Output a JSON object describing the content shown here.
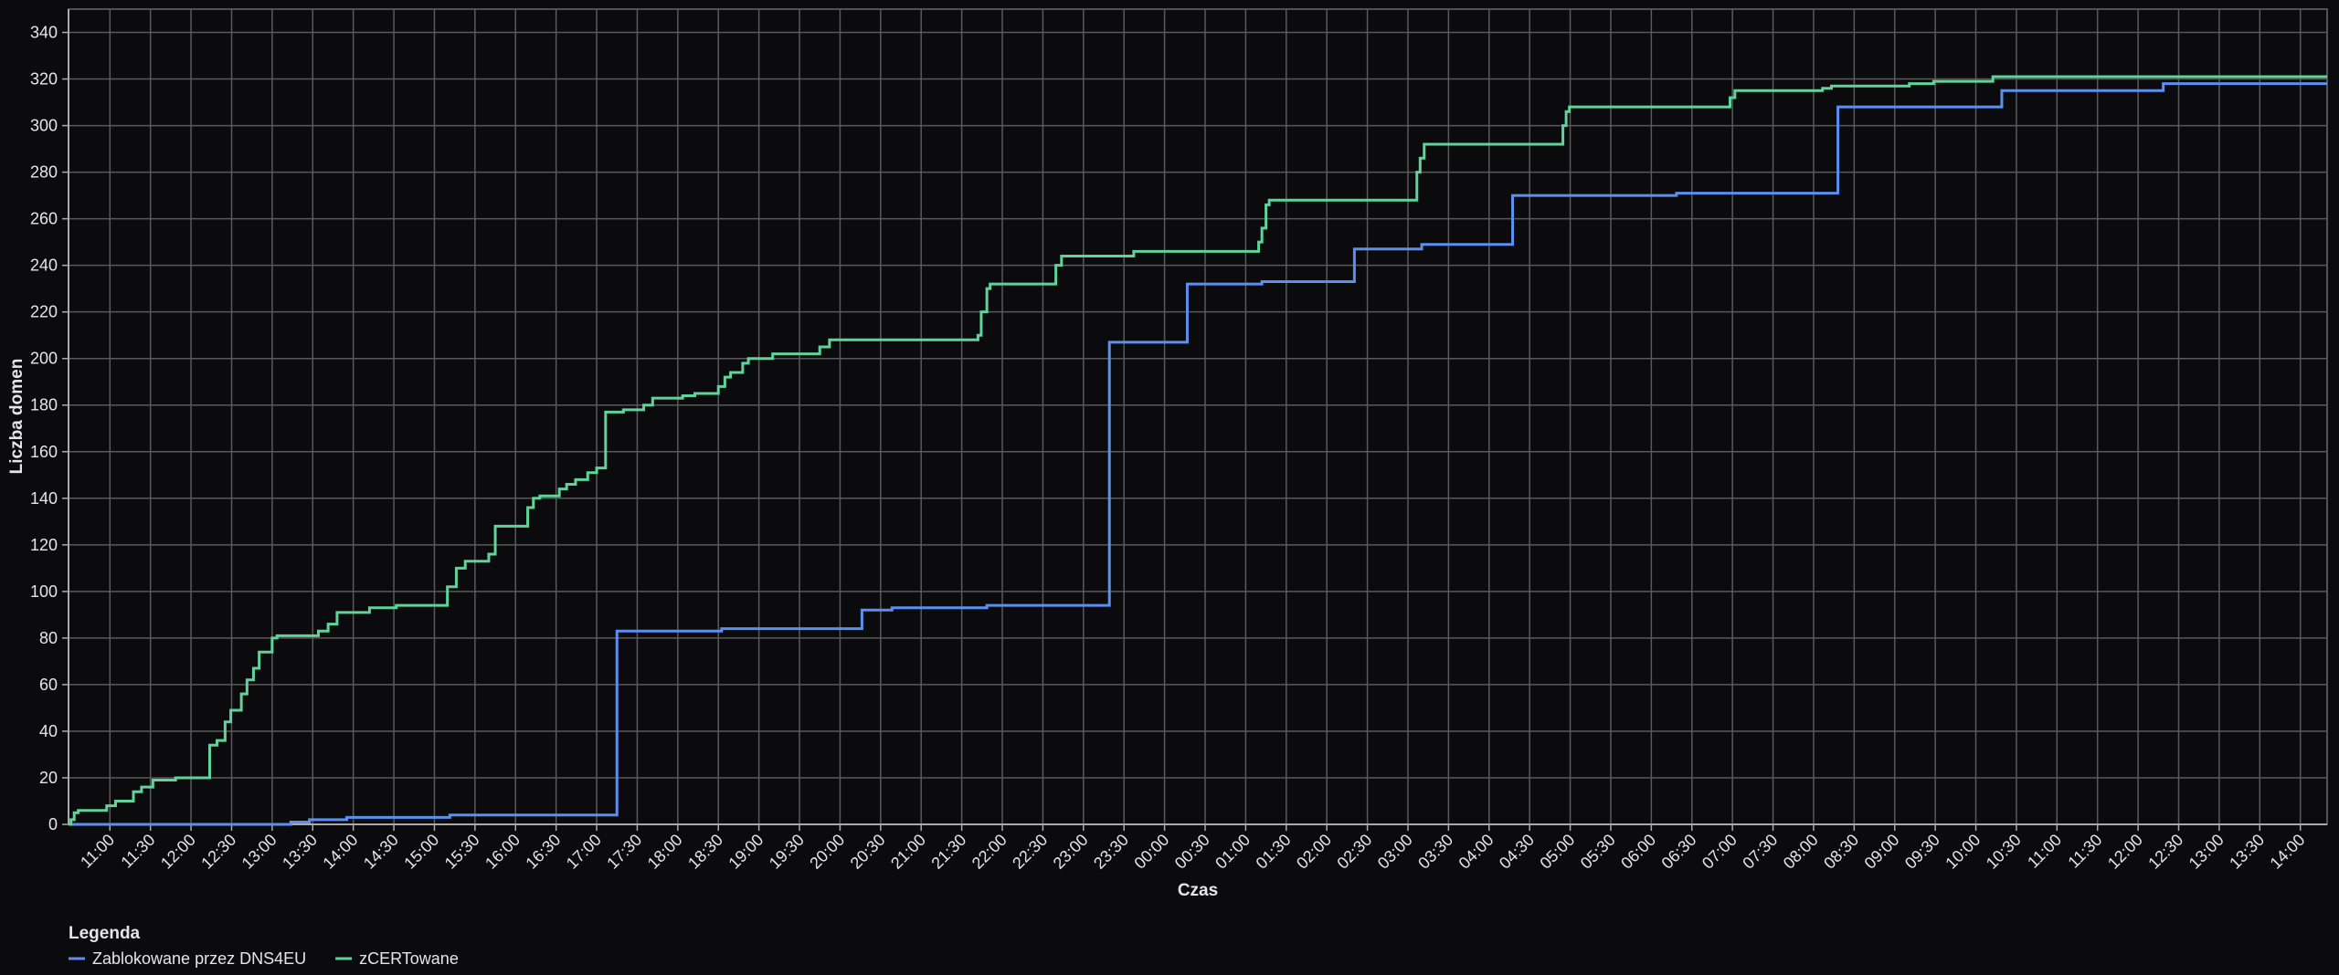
{
  "chart_data": {
    "type": "step-line",
    "x_label": "Czas",
    "y_label": "Liczba domen",
    "legend_title": "Legenda",
    "legend": "bottom-left",
    "grid": true,
    "xlim": [
      10.49,
      38.33
    ],
    "ylim": [
      0,
      350
    ],
    "yticks": [
      0,
      20,
      40,
      60,
      80,
      100,
      120,
      140,
      160,
      180,
      200,
      220,
      240,
      260,
      280,
      300,
      320,
      340
    ],
    "xticks": [
      {
        "value": 11,
        "label": "11:00"
      },
      {
        "value": 11.5,
        "label": "11:30"
      },
      {
        "value": 12,
        "label": "12:00"
      },
      {
        "value": 12.5,
        "label": "12:30"
      },
      {
        "value": 13,
        "label": "13:00"
      },
      {
        "value": 13.5,
        "label": "13:30"
      },
      {
        "value": 14,
        "label": "14:00"
      },
      {
        "value": 14.5,
        "label": "14:30"
      },
      {
        "value": 15,
        "label": "15:00"
      },
      {
        "value": 15.5,
        "label": "15:30"
      },
      {
        "value": 16,
        "label": "16:00"
      },
      {
        "value": 16.5,
        "label": "16:30"
      },
      {
        "value": 17,
        "label": "17:00"
      },
      {
        "value": 17.5,
        "label": "17:30"
      },
      {
        "value": 18,
        "label": "18:00"
      },
      {
        "value": 18.5,
        "label": "18:30"
      },
      {
        "value": 19,
        "label": "19:00"
      },
      {
        "value": 19.5,
        "label": "19:30"
      },
      {
        "value": 20,
        "label": "20:00"
      },
      {
        "value": 20.5,
        "label": "20:30"
      },
      {
        "value": 21,
        "label": "21:00"
      },
      {
        "value": 21.5,
        "label": "21:30"
      },
      {
        "value": 22,
        "label": "22:00"
      },
      {
        "value": 22.5,
        "label": "22:30"
      },
      {
        "value": 23,
        "label": "23:00"
      },
      {
        "value": 23.5,
        "label": "23:30"
      },
      {
        "value": 24,
        "label": "00:00"
      },
      {
        "value": 24.5,
        "label": "00:30"
      },
      {
        "value": 25,
        "label": "01:00"
      },
      {
        "value": 25.5,
        "label": "01:30"
      },
      {
        "value": 26,
        "label": "02:00"
      },
      {
        "value": 26.5,
        "label": "02:30"
      },
      {
        "value": 27,
        "label": "03:00"
      },
      {
        "value": 27.5,
        "label": "03:30"
      },
      {
        "value": 28,
        "label": "04:00"
      },
      {
        "value": 28.5,
        "label": "04:30"
      },
      {
        "value": 29,
        "label": "05:00"
      },
      {
        "value": 29.5,
        "label": "05:30"
      },
      {
        "value": 30,
        "label": "06:00"
      },
      {
        "value": 30.5,
        "label": "06:30"
      },
      {
        "value": 31,
        "label": "07:00"
      },
      {
        "value": 31.5,
        "label": "07:30"
      },
      {
        "value": 32,
        "label": "08:00"
      },
      {
        "value": 32.5,
        "label": "08:30"
      },
      {
        "value": 33,
        "label": "09:00"
      },
      {
        "value": 33.5,
        "label": "09:30"
      },
      {
        "value": 34,
        "label": "10:00"
      },
      {
        "value": 34.5,
        "label": "10:30"
      },
      {
        "value": 35,
        "label": "11:00"
      },
      {
        "value": 35.5,
        "label": "11:30"
      },
      {
        "value": 36,
        "label": "12:00"
      },
      {
        "value": 36.5,
        "label": "12:30"
      },
      {
        "value": 37,
        "label": "13:00"
      },
      {
        "value": 37.5,
        "label": "13:30"
      },
      {
        "value": 38,
        "label": "14:00"
      }
    ],
    "series": [
      {
        "name": "Zablokowane przez DNS4EU",
        "color": "#5b8ff0",
        "x": [
          10.49,
          13.23,
          13.46,
          13.92,
          15.19,
          17.25,
          18.54,
          20.27,
          20.64,
          21.81,
          23.32,
          24.28,
          25.2,
          26.34,
          27.17,
          28.29,
          30.31,
          32.3,
          34.32,
          36.31,
          38.33
        ],
        "values": [
          0,
          1,
          2,
          3,
          4,
          83,
          84,
          92,
          93,
          94,
          207,
          232,
          233,
          247,
          249,
          270,
          271,
          308,
          315,
          318,
          318
        ]
      },
      {
        "name": "zCERTowane",
        "color": "#5fd39a",
        "x": [
          10.49,
          10.52,
          10.56,
          10.61,
          10.89,
          10.96,
          11.07,
          11.29,
          11.39,
          11.53,
          11.81,
          12.23,
          12.32,
          12.42,
          12.49,
          12.62,
          12.69,
          12.77,
          12.84,
          13.0,
          13.06,
          13.57,
          13.69,
          13.8,
          14.2,
          14.53,
          15.16,
          15.27,
          15.38,
          15.67,
          15.75,
          16.15,
          16.22,
          16.3,
          16.54,
          16.63,
          16.74,
          16.89,
          17.0,
          17.11,
          17.33,
          17.58,
          17.69,
          18.06,
          18.21,
          18.5,
          18.58,
          18.65,
          18.8,
          18.87,
          19.17,
          19.75,
          19.87,
          21.7,
          21.74,
          21.81,
          21.85,
          22.66,
          22.73,
          23.62,
          25.16,
          25.2,
          25.25,
          25.29,
          27.11,
          27.15,
          27.2,
          28.91,
          28.95,
          28.99,
          30.97,
          31.03,
          32.11,
          32.22,
          33.18,
          33.48,
          34.21,
          38.33
        ],
        "values": [
          0,
          2,
          5,
          6,
          6,
          8,
          10,
          14,
          16,
          19,
          20,
          34,
          36,
          44,
          49,
          56,
          62,
          67,
          74,
          80,
          81,
          83,
          86,
          91,
          93,
          94,
          102,
          110,
          113,
          116,
          128,
          136,
          140,
          141,
          144,
          146,
          148,
          151,
          153,
          177,
          178,
          180,
          183,
          184,
          185,
          188,
          192,
          194,
          198,
          200,
          202,
          205,
          208,
          210,
          220,
          230,
          232,
          240,
          244,
          246,
          250,
          256,
          266,
          268,
          280,
          286,
          292,
          300,
          306,
          308,
          312,
          315,
          316,
          317,
          318,
          319,
          321,
          321
        ]
      }
    ]
  }
}
